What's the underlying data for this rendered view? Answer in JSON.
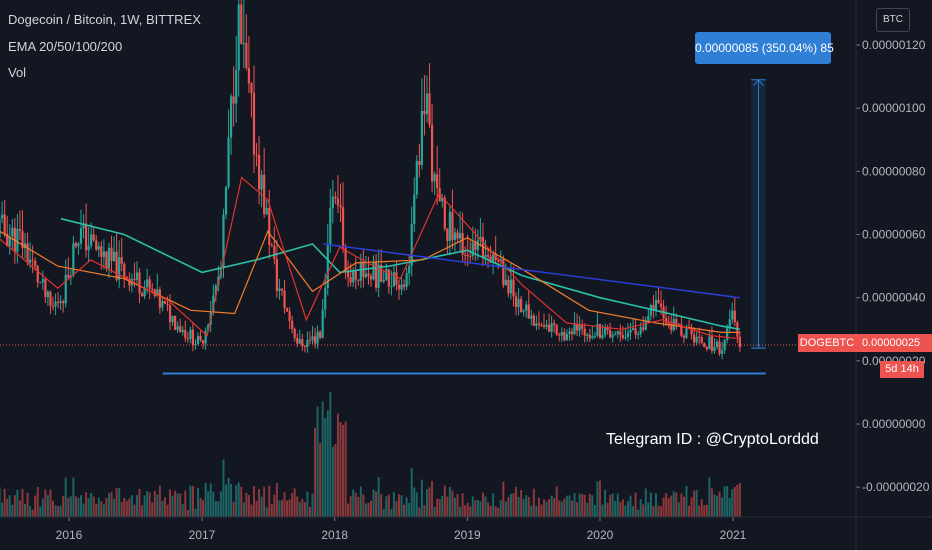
{
  "header": {
    "symbol_line": "Dogecoin / Bitcoin, 1W, BITTREX",
    "ema_line": "EMA 20/50/100/200",
    "vol_line": "Vol"
  },
  "currency_button": "BTC",
  "measure_label": "0.00000085 (350.04%) 85",
  "symbol_tag": "DOGEBTC",
  "price_tag": "0.00000025",
  "countdown_tag": "5d 14h",
  "watermark_text": "Telegram ID : @CryptoLorddd",
  "colors": {
    "background": "#131722",
    "up": "#26a69a",
    "down": "#ef5350",
    "ema20": "#e0332c",
    "ema50": "#f57c28",
    "ema200": "#2ac0a8",
    "trendline": "#2b3fd6",
    "support": "#2f7fd6",
    "measure": "#2f7fd6"
  },
  "chart_data": {
    "type": "candlestick",
    "title": "Dogecoin / Bitcoin, 1W, BITTREX",
    "xlabel": "",
    "ylabel": "",
    "y_axis_unit": "BTC",
    "y_ticks": [
      "0.00000120",
      "0.00000100",
      "0.00000080",
      "0.00000060",
      "0.00000040",
      "0.00000020",
      "0.00000000",
      "-0.00000020"
    ],
    "y_tick_values": [
      1.2e-06,
      1e-06,
      8e-07,
      6e-07,
      4e-07,
      2e-07,
      0,
      -2e-07
    ],
    "x_ticks": [
      "2016",
      "2017",
      "2018",
      "2019",
      "2020",
      "2021"
    ],
    "x_tick_dates": [
      "2016-01-01",
      "2017-01-01",
      "2018-01-01",
      "2019-01-01",
      "2020-01-01",
      "2021-01-01"
    ],
    "x_range": [
      "2015-06-01",
      "2022-01-15"
    ],
    "y_range": [
      -2.7e-07,
      1.3e-06
    ],
    "grid": false,
    "price_path": [
      [
        "2015-06-10",
        6.3e-07
      ],
      [
        "2015-09-01",
        5.8e-07
      ],
      [
        "2015-11-20",
        3.6e-07
      ],
      [
        "2015-12-25",
        4.2e-07
      ],
      [
        "2016-02-01",
        6.1e-07
      ],
      [
        "2016-05-01",
        5.1e-07
      ],
      [
        "2016-08-01",
        4.4e-07
      ],
      [
        "2016-11-15",
        3e-07
      ],
      [
        "2017-01-05",
        2.5e-07
      ],
      [
        "2017-03-01",
        4.9e-07
      ],
      [
        "2017-04-15",
        1.28e-06
      ],
      [
        "2017-06-01",
        9e-07
      ],
      [
        "2017-08-01",
        4.5e-07
      ],
      [
        "2017-10-01",
        2.5e-07
      ],
      [
        "2017-12-01",
        2.8e-07
      ],
      [
        "2018-01-05",
        7.8e-07
      ],
      [
        "2018-02-15",
        4.6e-07
      ],
      [
        "2018-03-15",
        4.9e-07
      ],
      [
        "2018-06-01",
        4.6e-07
      ],
      [
        "2018-07-25",
        4.6e-07
      ],
      [
        "2018-09-15",
        1.05e-06
      ],
      [
        "2018-10-15",
        7e-07
      ],
      [
        "2018-12-01",
        6e-07
      ],
      [
        "2019-01-20",
        5.4e-07
      ],
      [
        "2019-03-15",
        5.6e-07
      ],
      [
        "2019-05-15",
        4.1e-07
      ],
      [
        "2019-07-15",
        3.2e-07
      ],
      [
        "2019-10-01",
        2.9e-07
      ],
      [
        "2020-01-01",
        3e-07
      ],
      [
        "2020-03-01",
        2.9e-07
      ],
      [
        "2020-05-15",
        3e-07
      ],
      [
        "2020-06-01",
        3.8e-07
      ],
      [
        "2020-07-15",
        3.2e-07
      ],
      [
        "2020-10-01",
        2.7e-07
      ],
      [
        "2020-12-10",
        2.4e-07
      ],
      [
        "2021-01-05",
        3.5e-07
      ],
      [
        "2021-01-20",
        2.6e-07
      ]
    ],
    "ema_20": [
      [
        "2015-06-10",
        6e-07
      ],
      [
        "2015-12-01",
        4.3e-07
      ],
      [
        "2016-03-01",
        5.2e-07
      ],
      [
        "2016-10-01",
        3.9e-07
      ],
      [
        "2017-01-15",
        2.8e-07
      ],
      [
        "2017-04-20",
        7.8e-07
      ],
      [
        "2017-07-01",
        7.1e-07
      ],
      [
        "2017-10-15",
        3.3e-07
      ],
      [
        "2018-01-15",
        5.6e-07
      ],
      [
        "2018-04-01",
        5.1e-07
      ],
      [
        "2018-07-01",
        4.6e-07
      ],
      [
        "2018-10-15",
        7.3e-07
      ],
      [
        "2019-02-01",
        5.9e-07
      ],
      [
        "2019-06-01",
        4.4e-07
      ],
      [
        "2019-10-01",
        3.2e-07
      ],
      [
        "2020-03-01",
        3e-07
      ],
      [
        "2020-06-20",
        3.3e-07
      ],
      [
        "2020-11-01",
        2.8e-07
      ],
      [
        "2021-01-20",
        2.7e-07
      ]
    ],
    "ema_50": [
      [
        "2015-06-10",
        6.2e-07
      ],
      [
        "2015-12-01",
        5e-07
      ],
      [
        "2016-06-01",
        4.6e-07
      ],
      [
        "2016-12-01",
        3.6e-07
      ],
      [
        "2017-04-01",
        3.5e-07
      ],
      [
        "2017-07-01",
        6.1e-07
      ],
      [
        "2017-11-01",
        4.2e-07
      ],
      [
        "2018-03-01",
        5.1e-07
      ],
      [
        "2018-09-01",
        5.2e-07
      ],
      [
        "2019-01-01",
        5.9e-07
      ],
      [
        "2019-06-01",
        4.9e-07
      ],
      [
        "2019-12-01",
        3.6e-07
      ],
      [
        "2020-06-01",
        3.2e-07
      ],
      [
        "2020-12-01",
        2.9e-07
      ],
      [
        "2021-01-20",
        2.9e-07
      ]
    ],
    "ema_200": [
      [
        "2015-12-10",
        6.5e-07
      ],
      [
        "2016-06-01",
        6e-07
      ],
      [
        "2017-01-01",
        4.8e-07
      ],
      [
        "2017-06-01",
        5.2e-07
      ],
      [
        "2017-11-01",
        5.7e-07
      ],
      [
        "2018-01-15",
        4.8e-07
      ],
      [
        "2018-06-01",
        5e-07
      ],
      [
        "2019-01-01",
        5.5e-07
      ],
      [
        "2019-06-01",
        4.7e-07
      ],
      [
        "2020-01-01",
        4e-07
      ],
      [
        "2020-06-01",
        3.6e-07
      ],
      [
        "2020-12-01",
        3.1e-07
      ],
      [
        "2021-01-20",
        3e-07
      ]
    ],
    "trendline": [
      [
        "2017-12-01",
        5.7e-07
      ],
      [
        "2021-01-20",
        4e-07
      ]
    ],
    "support_line": [
      [
        "2016-09-15",
        1.6e-07
      ],
      [
        "2021-04-01",
        1.6e-07
      ]
    ],
    "measure_range": {
      "from": [
        "2021-02-20",
        2.4e-07
      ],
      "to": [
        "2021-04-01",
        1.09e-06
      ]
    },
    "last_price": 2.5e-07,
    "volume_note": "Vol"
  }
}
